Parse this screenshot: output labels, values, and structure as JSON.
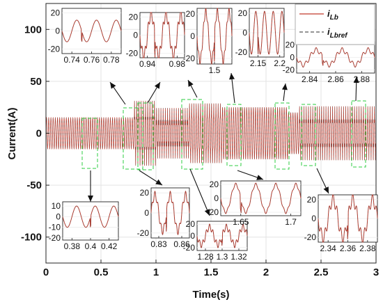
{
  "chart_data": {
    "type": "line",
    "xlabel": "Time(s)",
    "ylabel": "Current(A)",
    "xlim": [
      0,
      3
    ],
    "ylim": [
      -125,
      125
    ],
    "xticks": [
      "0",
      "0.5",
      "1",
      "1.5",
      "2",
      "2.5",
      "3"
    ],
    "yticks": [
      "-100",
      "-50",
      "0",
      "50",
      "100"
    ],
    "grid": true,
    "legend_position": "top-right",
    "series": [
      {
        "name": "i",
        "sub": "Lb",
        "color": "#c0392b",
        "style": "solid"
      },
      {
        "name": "i",
        "sub": "Lbref",
        "color": "#555555",
        "style": "dashed"
      }
    ],
    "frequency_hz": 50,
    "segments": [
      {
        "t": [
          0.0,
          0.8
        ],
        "amplitude": 15,
        "harmonic": 0.0
      },
      {
        "t": [
          0.8,
          1.0
        ],
        "amplitude": 25,
        "harmonic": 0.25
      },
      {
        "t": [
          1.0,
          1.3
        ],
        "amplitude": 18,
        "harmonic": 0.35
      },
      {
        "t": [
          1.3,
          1.6
        ],
        "amplitude": 25,
        "harmonic": 0.15
      },
      {
        "t": [
          1.6,
          2.2
        ],
        "amplitude": 25,
        "harmonic": 0.0
      },
      {
        "t": [
          2.2,
          2.3
        ],
        "amplitude": 20,
        "harmonic": 0.0
      },
      {
        "t": [
          2.3,
          2.6
        ],
        "amplitude": 20,
        "harmonic": 0.3
      },
      {
        "t": [
          2.6,
          3.0
        ],
        "amplitude": 20,
        "harmonic": 0.3
      }
    ],
    "insets": [
      {
        "id": "z1",
        "xticks": [
          "0.74",
          "0.76",
          "0.78"
        ],
        "yticks": [
          "20",
          "0",
          "-20"
        ],
        "t": [
          0.73,
          0.79
        ],
        "ylim": [
          -25,
          25
        ],
        "amplitude": 12,
        "harmonic": 0.0,
        "spike": 0.75
      },
      {
        "id": "z2",
        "xticks": [
          "0.94",
          "0.98"
        ],
        "yticks": [
          "20",
          "0",
          "-20"
        ],
        "t": [
          0.93,
          0.99
        ],
        "ylim": [
          -25,
          25
        ],
        "amplitude": 23,
        "harmonic": 0.25,
        "spike": 0.95
      },
      {
        "id": "z3",
        "xticks": [
          "1.5"
        ],
        "yticks": [
          "20",
          "0",
          "-20"
        ],
        "t": [
          1.47,
          1.53
        ],
        "ylim": [
          -25,
          25
        ],
        "amplitude": 22,
        "harmonic": 0.15,
        "spike": 1.5
      },
      {
        "id": "z4",
        "xticks": [
          "2.15",
          "2.2"
        ],
        "yticks": [
          "20",
          "0",
          "-20"
        ],
        "t": [
          2.13,
          2.21
        ],
        "ylim": [
          -25,
          25
        ],
        "amplitude": 22,
        "harmonic": 0.0,
        "spike": 2.15
      },
      {
        "id": "z5",
        "xticks": [
          "2.84",
          "2.86",
          "2.88"
        ],
        "yticks": [
          "20",
          "0",
          "-20"
        ],
        "t": [
          2.83,
          2.89
        ],
        "ylim": [
          -25,
          25
        ],
        "amplitude": 12,
        "harmonic": 0.3,
        "spike": 2.85
      },
      {
        "id": "z6",
        "xticks": [
          "0.38",
          "0.4",
          "0.42"
        ],
        "yticks": [
          "10",
          "0",
          "-10",
          "-20"
        ],
        "t": [
          0.37,
          0.43
        ],
        "ylim": [
          -22,
          14
        ],
        "amplitude": 10,
        "harmonic": 0.0,
        "spike": 0.4
      },
      {
        "id": "z7",
        "xticks": [
          "0.83",
          "0.86"
        ],
        "yticks": [
          "20",
          "0",
          "-20"
        ],
        "t": [
          0.82,
          0.87
        ],
        "ylim": [
          -25,
          25
        ],
        "amplitude": 18,
        "harmonic": 0.2,
        "spike": 0.84
      },
      {
        "id": "z8",
        "xticks": [
          "1.28",
          "1.3",
          "1.32"
        ],
        "yticks": [
          "20",
          "0",
          "-20"
        ],
        "t": [
          1.27,
          1.33
        ],
        "ylim": [
          -25,
          25
        ],
        "amplitude": 15,
        "harmonic": 0.35,
        "spike": 1.3
      },
      {
        "id": "z9",
        "xticks": [
          "1.65",
          "1.7"
        ],
        "yticks": [
          "20",
          "0",
          "-20"
        ],
        "t": [
          1.63,
          1.71
        ],
        "ylim": [
          -25,
          25
        ],
        "amplitude": 20,
        "harmonic": 0.1,
        "spike": 1.65
      },
      {
        "id": "z10",
        "xticks": [
          "2.34",
          "2.36",
          "2.38"
        ],
        "yticks": [
          "20",
          "0",
          "-20"
        ],
        "t": [
          2.33,
          2.39
        ],
        "ylim": [
          -25,
          25
        ],
        "amplitude": 20,
        "harmonic": 0.3,
        "spike": 2.36
      }
    ]
  }
}
